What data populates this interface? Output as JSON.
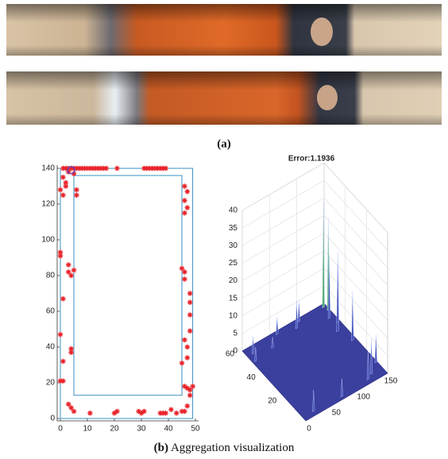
{
  "panel_a": {
    "label": "(a)"
  },
  "panel_b": {
    "label_bold": "(b)",
    "label_text": "Aggregation visualization"
  },
  "scatter": {
    "type": "scatter",
    "color": "#e8232a",
    "rect_color": "#3a8fc0",
    "xlim": [
      0,
      50
    ],
    "ylim": [
      0,
      140
    ],
    "xticks": [
      0,
      10,
      20,
      30,
      40,
      50
    ],
    "yticks": [
      0,
      20,
      40,
      60,
      80,
      100,
      120,
      140
    ],
    "outer_rect": [
      0,
      0,
      49,
      140
    ],
    "inner_rect": [
      5,
      13,
      45,
      136
    ],
    "highlight": [
      4,
      139
    ],
    "x": [
      1,
      2,
      3,
      4,
      5,
      6,
      7,
      8,
      9,
      10,
      11,
      12,
      13,
      14,
      15,
      16,
      17,
      21,
      31,
      32,
      33,
      34,
      35,
      36,
      37,
      38,
      39,
      1,
      2,
      2,
      3,
      5,
      6,
      6,
      0,
      1,
      0,
      0,
      3,
      3,
      4,
      5,
      1,
      0,
      4,
      4,
      1,
      0,
      1,
      3,
      4,
      5,
      46,
      47,
      47,
      46,
      46,
      45,
      46,
      46,
      48,
      48,
      48,
      48,
      46,
      47,
      47,
      45,
      46,
      47,
      48,
      49,
      48,
      47,
      46,
      45,
      11,
      20,
      21,
      29,
      30,
      31,
      37,
      38,
      39,
      41,
      43
    ],
    "y": [
      140,
      140,
      140,
      140,
      140,
      140,
      140,
      140,
      140,
      140,
      140,
      140,
      140,
      140,
      140,
      140,
      140,
      140,
      140,
      140,
      140,
      140,
      140,
      140,
      140,
      140,
      140,
      135,
      132,
      130,
      138,
      137,
      128,
      125,
      128,
      125,
      93,
      91,
      86,
      82,
      80,
      83,
      67,
      47,
      39,
      37,
      32,
      21,
      21,
      8,
      6,
      4,
      130,
      127,
      118,
      122,
      115,
      84,
      82,
      78,
      70,
      65,
      58,
      49,
      44,
      40,
      34,
      31,
      18,
      17,
      16,
      18,
      13,
      7,
      4,
      4,
      3,
      3,
      4,
      4,
      3,
      4,
      3,
      3,
      3,
      5,
      3
    ]
  },
  "surface": {
    "title": "Error:1.1936",
    "zticks": [
      0,
      5,
      10,
      15,
      20,
      25,
      30,
      35,
      40
    ],
    "xticks": [
      0,
      50,
      100,
      150
    ],
    "yticks": [
      20,
      40,
      60
    ],
    "xlim": [
      0,
      150
    ],
    "ylim": [
      0,
      60
    ],
    "zlim": [
      0,
      40
    ]
  }
}
